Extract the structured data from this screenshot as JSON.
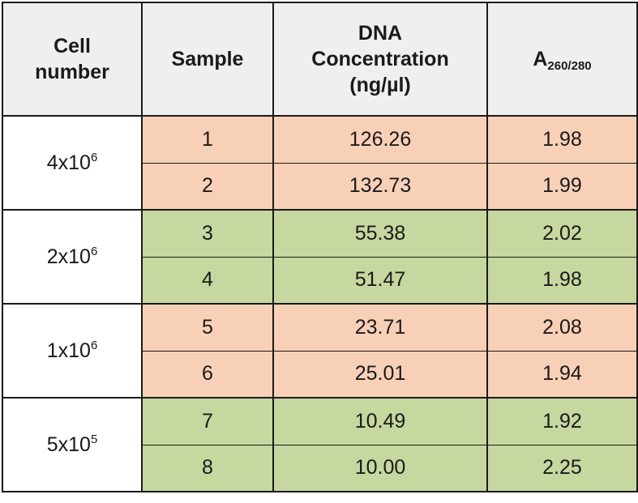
{
  "headers": {
    "cell_number": "Cell number",
    "sample": "Sample",
    "dna_concentration": "DNA Concentration (ng/µl)",
    "absorbance_main": "A",
    "absorbance_sub": "260/280"
  },
  "groups": [
    {
      "cell_base": "4x10",
      "cell_exp": "6",
      "color": "#f8d0b7",
      "rows": [
        {
          "sample": "1",
          "concentration": "126.26",
          "ratio": "1.98"
        },
        {
          "sample": "2",
          "concentration": "132.73",
          "ratio": "1.99"
        }
      ]
    },
    {
      "cell_base": "2x10",
      "cell_exp": "6",
      "color": "#c6d79f",
      "rows": [
        {
          "sample": "3",
          "concentration": "55.38",
          "ratio": "2.02"
        },
        {
          "sample": "4",
          "concentration": "51.47",
          "ratio": "1.98"
        }
      ]
    },
    {
      "cell_base": "1x10",
      "cell_exp": "6",
      "color": "#f8d0b7",
      "rows": [
        {
          "sample": "5",
          "concentration": "23.71",
          "ratio": "2.08"
        },
        {
          "sample": "6",
          "concentration": "25.01",
          "ratio": "1.94"
        }
      ]
    },
    {
      "cell_base": "5x10",
      "cell_exp": "5",
      "color": "#c6d79f",
      "rows": [
        {
          "sample": "7",
          "concentration": "10.49",
          "ratio": "1.92"
        },
        {
          "sample": "8",
          "concentration": "10.00",
          "ratio": "2.25"
        }
      ]
    }
  ]
}
